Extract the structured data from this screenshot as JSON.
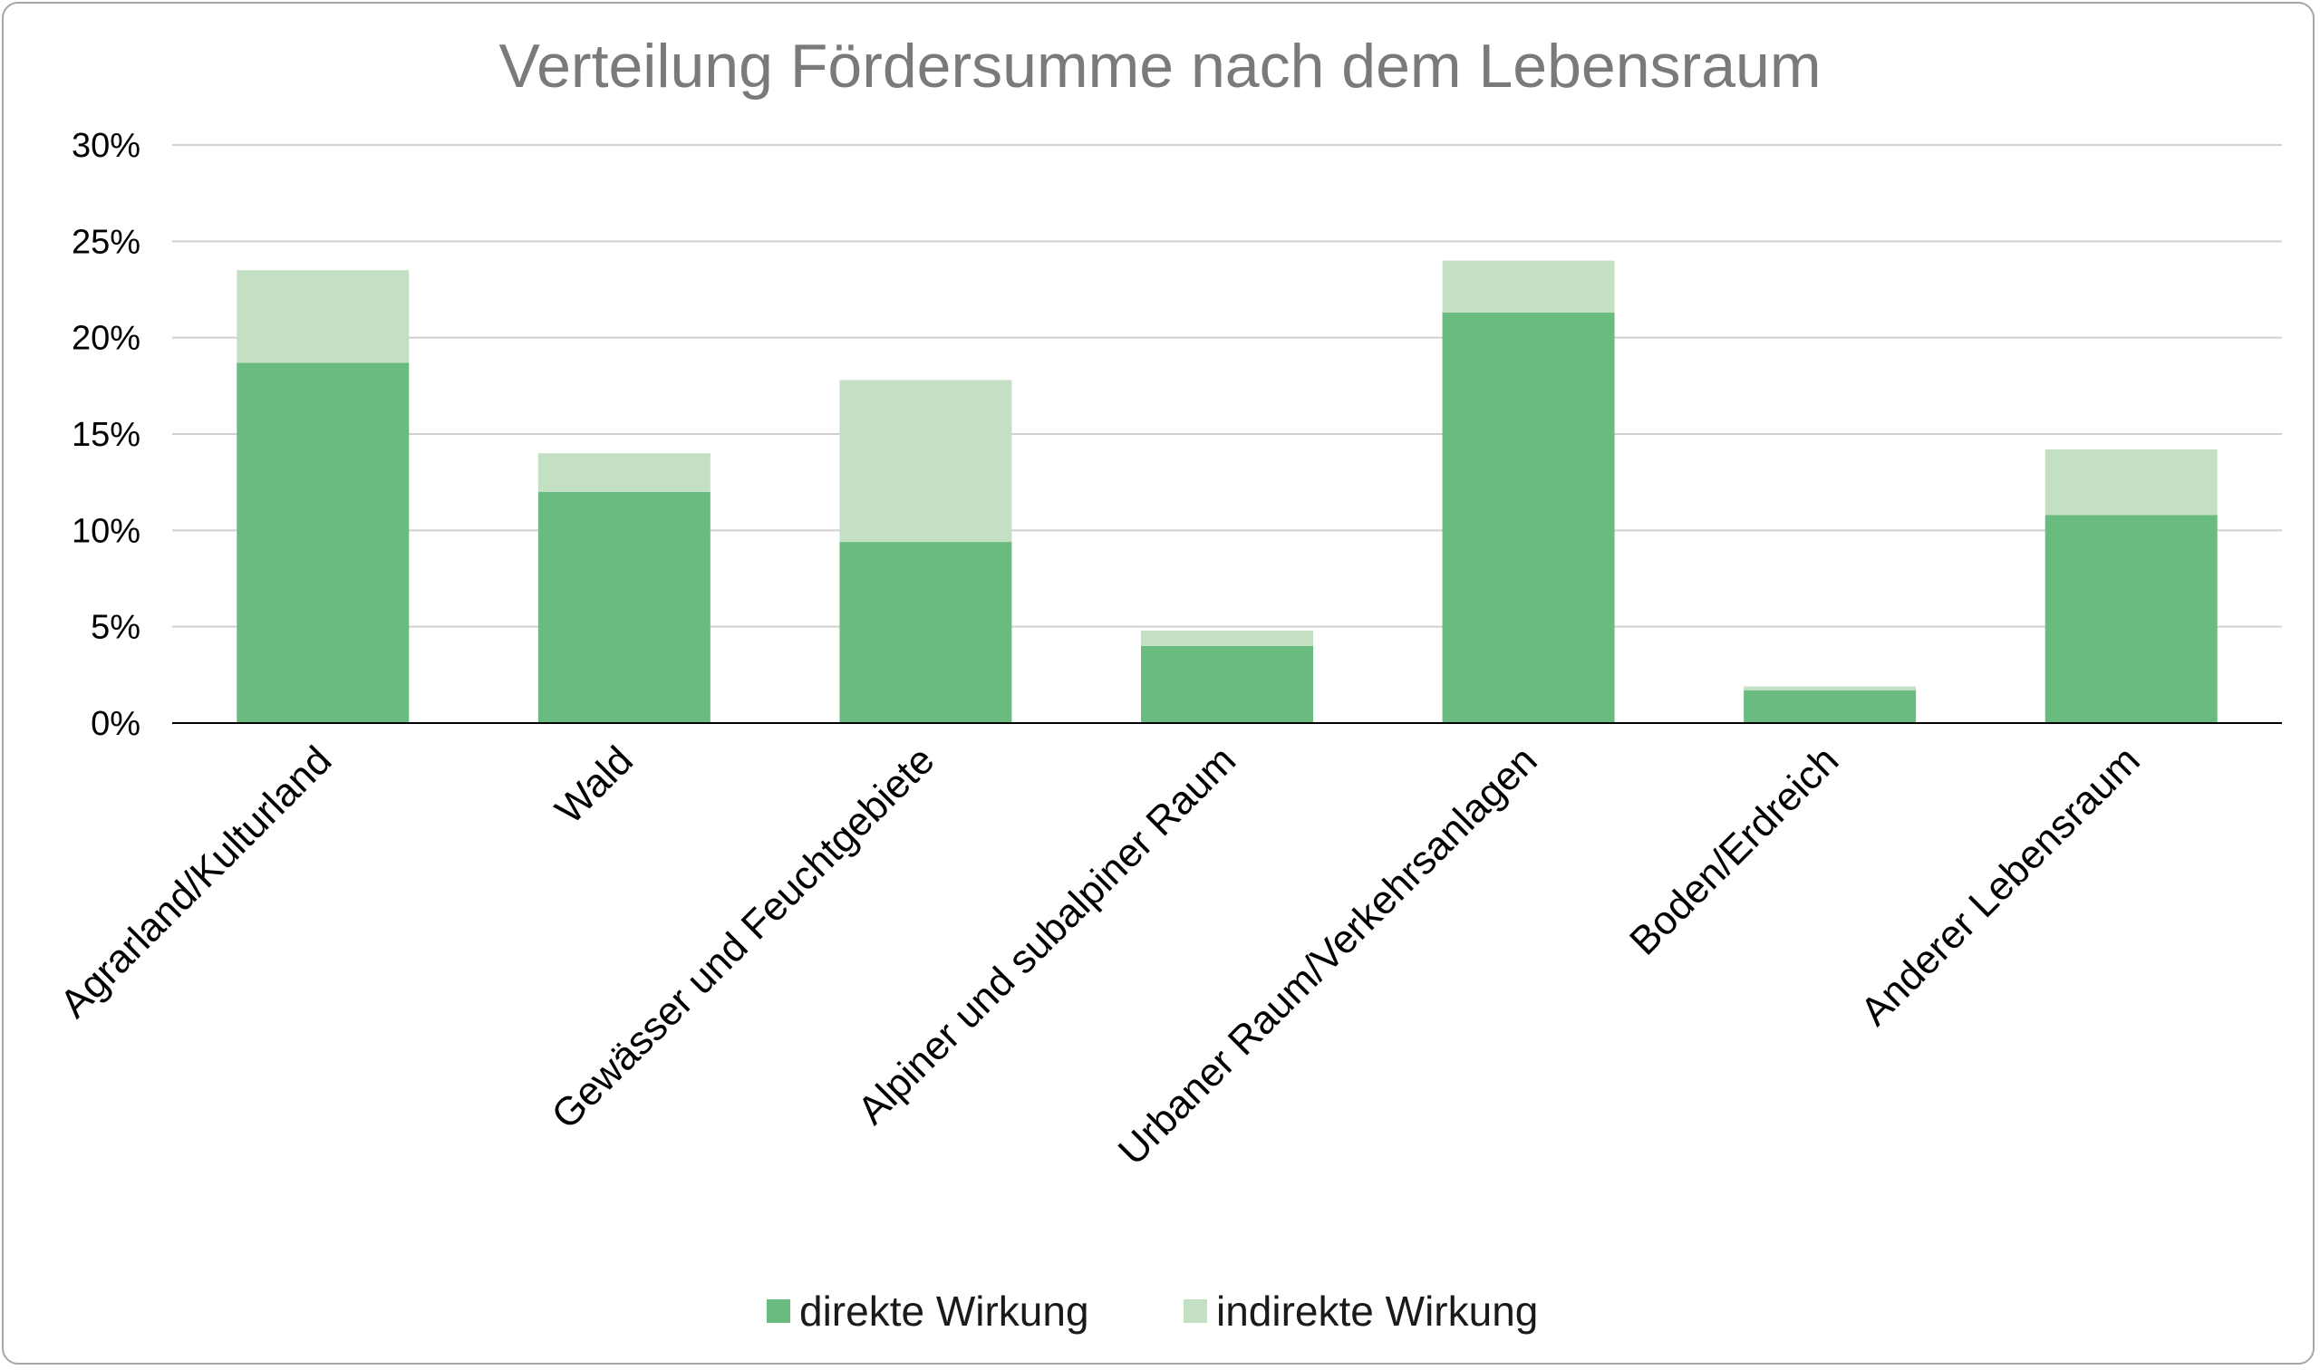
{
  "chart_data": {
    "type": "bar",
    "stacked": true,
    "title": "Verteilung Fördersumme nach dem Lebensraum",
    "xlabel": "",
    "ylabel": "",
    "categories": [
      "Agrarland/Kulturland",
      "Wald",
      "Gewässer und Feuchtgebiete",
      "Alpiner und subalpiner Raum",
      "Urbaner Raum/Verkehrsanlagen",
      "Boden/Erdreich",
      "Anderer Lebensraum"
    ],
    "series": [
      {
        "name": "direkte Wirkung",
        "color": "#6abb7f",
        "values": [
          18.7,
          12.0,
          9.4,
          4.0,
          21.3,
          1.7,
          10.8
        ]
      },
      {
        "name": "indirekte Wirkung",
        "color": "#c3e0c5",
        "values": [
          4.8,
          2.0,
          8.4,
          0.8,
          2.7,
          0.2,
          3.4
        ]
      }
    ],
    "ylim": [
      0,
      30
    ],
    "yticks": [
      0,
      5,
      10,
      15,
      20,
      25,
      30
    ],
    "ytick_suffix": "%",
    "grid": true,
    "legend_position": "bottom",
    "gridline_color": "#d0d0d0",
    "axis_color": "#000000"
  }
}
